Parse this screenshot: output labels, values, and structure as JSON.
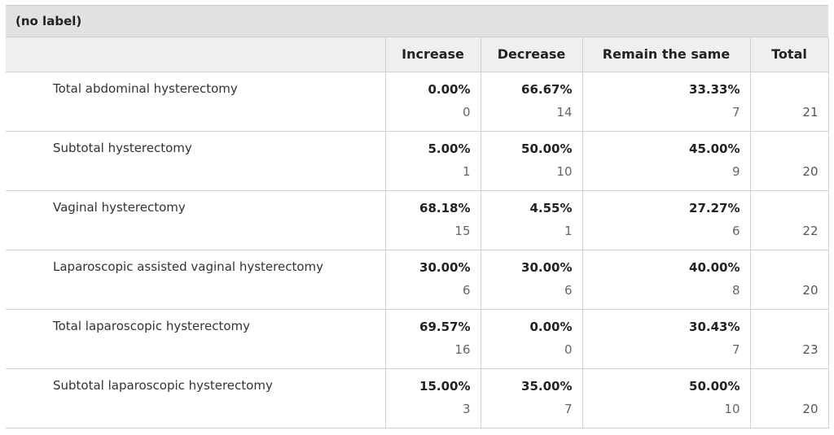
{
  "question_label": "(no label)",
  "columns": [
    "Increase",
    "Decrease",
    "Remain the same",
    "Total"
  ],
  "chart_data": {
    "type": "table",
    "title": "(no label)",
    "columns": [
      "Increase",
      "Decrease",
      "Remain the same",
      "Total"
    ],
    "rows": [
      {
        "label": "Total abdominal hysterectomy",
        "cells": [
          {
            "pct": "0.00%",
            "count": "0"
          },
          {
            "pct": "66.67%",
            "count": "14"
          },
          {
            "pct": "33.33%",
            "count": "7"
          }
        ],
        "total": "21"
      },
      {
        "label": "Subtotal hysterectomy",
        "cells": [
          {
            "pct": "5.00%",
            "count": "1"
          },
          {
            "pct": "50.00%",
            "count": "10"
          },
          {
            "pct": "45.00%",
            "count": "9"
          }
        ],
        "total": "20"
      },
      {
        "label": "Vaginal hysterectomy",
        "cells": [
          {
            "pct": "68.18%",
            "count": "15"
          },
          {
            "pct": "4.55%",
            "count": "1"
          },
          {
            "pct": "27.27%",
            "count": "6"
          }
        ],
        "total": "22"
      },
      {
        "label": "Laparoscopic assisted vaginal hysterectomy",
        "cells": [
          {
            "pct": "30.00%",
            "count": "6"
          },
          {
            "pct": "30.00%",
            "count": "6"
          },
          {
            "pct": "40.00%",
            "count": "8"
          }
        ],
        "total": "20"
      },
      {
        "label": "Total laparoscopic hysterectomy",
        "cells": [
          {
            "pct": "69.57%",
            "count": "16"
          },
          {
            "pct": "0.00%",
            "count": "0"
          },
          {
            "pct": "30.43%",
            "count": "7"
          }
        ],
        "total": "23"
      },
      {
        "label": "Subtotal laparoscopic hysterectomy",
        "cells": [
          {
            "pct": "15.00%",
            "count": "3"
          },
          {
            "pct": "35.00%",
            "count": "7"
          },
          {
            "pct": "50.00%",
            "count": "10"
          }
        ],
        "total": "20"
      }
    ]
  }
}
